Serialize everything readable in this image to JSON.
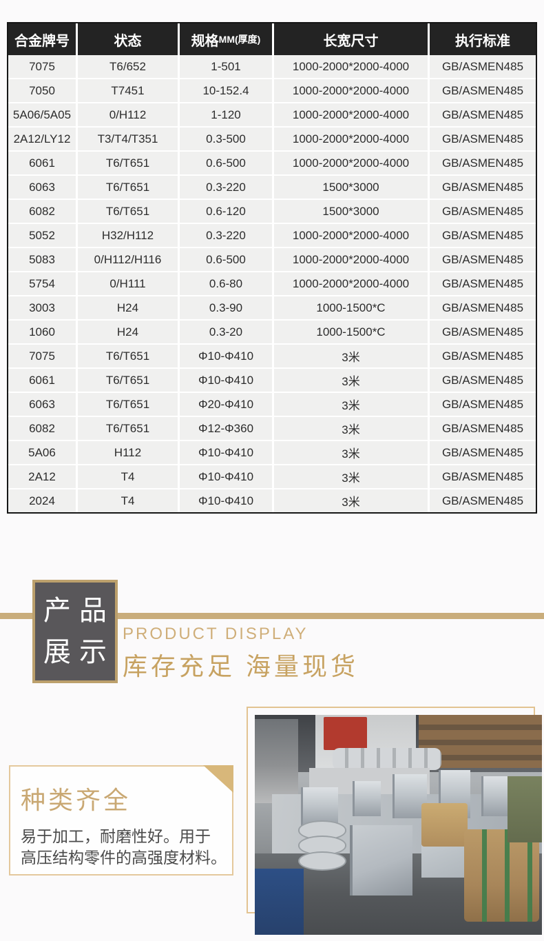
{
  "colors": {
    "gold_band": "#c9ad7c",
    "gold_border": "#bca06c",
    "gold_text": "#c7a261",
    "card_border": "#e4c89c",
    "dark_box": "#59575a",
    "table_header_bg": "#232323",
    "table_row_bg": "#f0f0ef",
    "table_border": "#161616",
    "body_text": "#4a4a4a"
  },
  "spec_table": {
    "headers": [
      {
        "t": "合金牌号",
        "sub": ""
      },
      {
        "t": "状态",
        "sub": ""
      },
      {
        "t": "规格",
        "sub": "MM(厚度)"
      },
      {
        "t": "长宽尺寸",
        "sub": ""
      },
      {
        "t": "执行标准",
        "sub": ""
      }
    ],
    "rows": [
      [
        "7075",
        "T6/652",
        "1-501",
        "1000-2000*2000-4000",
        "GB/ASMEN485"
      ],
      [
        "7050",
        "T7451",
        "10-152.4",
        "1000-2000*2000-4000",
        "GB/ASMEN485"
      ],
      [
        "5A06/5A05",
        "0/H112",
        "1-120",
        "1000-2000*2000-4000",
        "GB/ASMEN485"
      ],
      [
        "2A12/LY12",
        "T3/T4/T351",
        "0.3-500",
        "1000-2000*2000-4000",
        "GB/ASMEN485"
      ],
      [
        "6061",
        "T6/T651",
        "0.6-500",
        "1000-2000*2000-4000",
        "GB/ASMEN485"
      ],
      [
        "6063",
        "T6/T651",
        "0.3-220",
        "1500*3000",
        "GB/ASMEN485"
      ],
      [
        "6082",
        "T6/T651",
        "0.6-120",
        "1500*3000",
        "GB/ASMEN485"
      ],
      [
        "5052",
        "H32/H112",
        "0.3-220",
        "1000-2000*2000-4000",
        "GB/ASMEN485"
      ],
      [
        "5083",
        "0/H112/H116",
        "0.6-500",
        "1000-2000*2000-4000",
        "GB/ASMEN485"
      ],
      [
        "5754",
        "0/H111",
        "0.6-80",
        "1000-2000*2000-4000",
        "GB/ASMEN485"
      ],
      [
        "3003",
        "H24",
        "0.3-90",
        "1000-1500*C",
        "GB/ASMEN485"
      ],
      [
        "1060",
        "H24",
        "0.3-20",
        "1000-1500*C",
        "GB/ASMEN485"
      ],
      [
        "7075",
        "T6/T651",
        "Φ10-Φ410",
        "3米",
        "GB/ASMEN485"
      ],
      [
        "6061",
        "T6/T651",
        "Φ10-Φ410",
        "3米",
        "GB/ASMEN485"
      ],
      [
        "6063",
        "T6/T651",
        "Φ20-Φ410",
        "3米",
        "GB/ASMEN485"
      ],
      [
        "6082",
        "T6/T651",
        "Φ12-Φ360",
        "3米",
        "GB/ASMEN485"
      ],
      [
        "5A06",
        "H112",
        "Φ10-Φ410",
        "3米",
        "GB/ASMEN485"
      ],
      [
        "2A12",
        "T4",
        "Φ10-Φ410",
        "3米",
        "GB/ASMEN485"
      ],
      [
        "2024",
        "T4",
        "Φ10-Φ410",
        "3米",
        "GB/ASMEN485"
      ]
    ]
  },
  "product_display": {
    "box_line1": "产品",
    "box_line2": "展示",
    "subtitle_en": "PRODUCT DISPLAY",
    "subtitle_cn": "库存充足 海量现货"
  },
  "feature_card": {
    "title": "种类齐全",
    "line1": "易于加工，耐磨性好。用于",
    "line2": "高压结构零件的高强度材料。"
  },
  "photo": {
    "alt": "铝材仓库现货照片"
  }
}
